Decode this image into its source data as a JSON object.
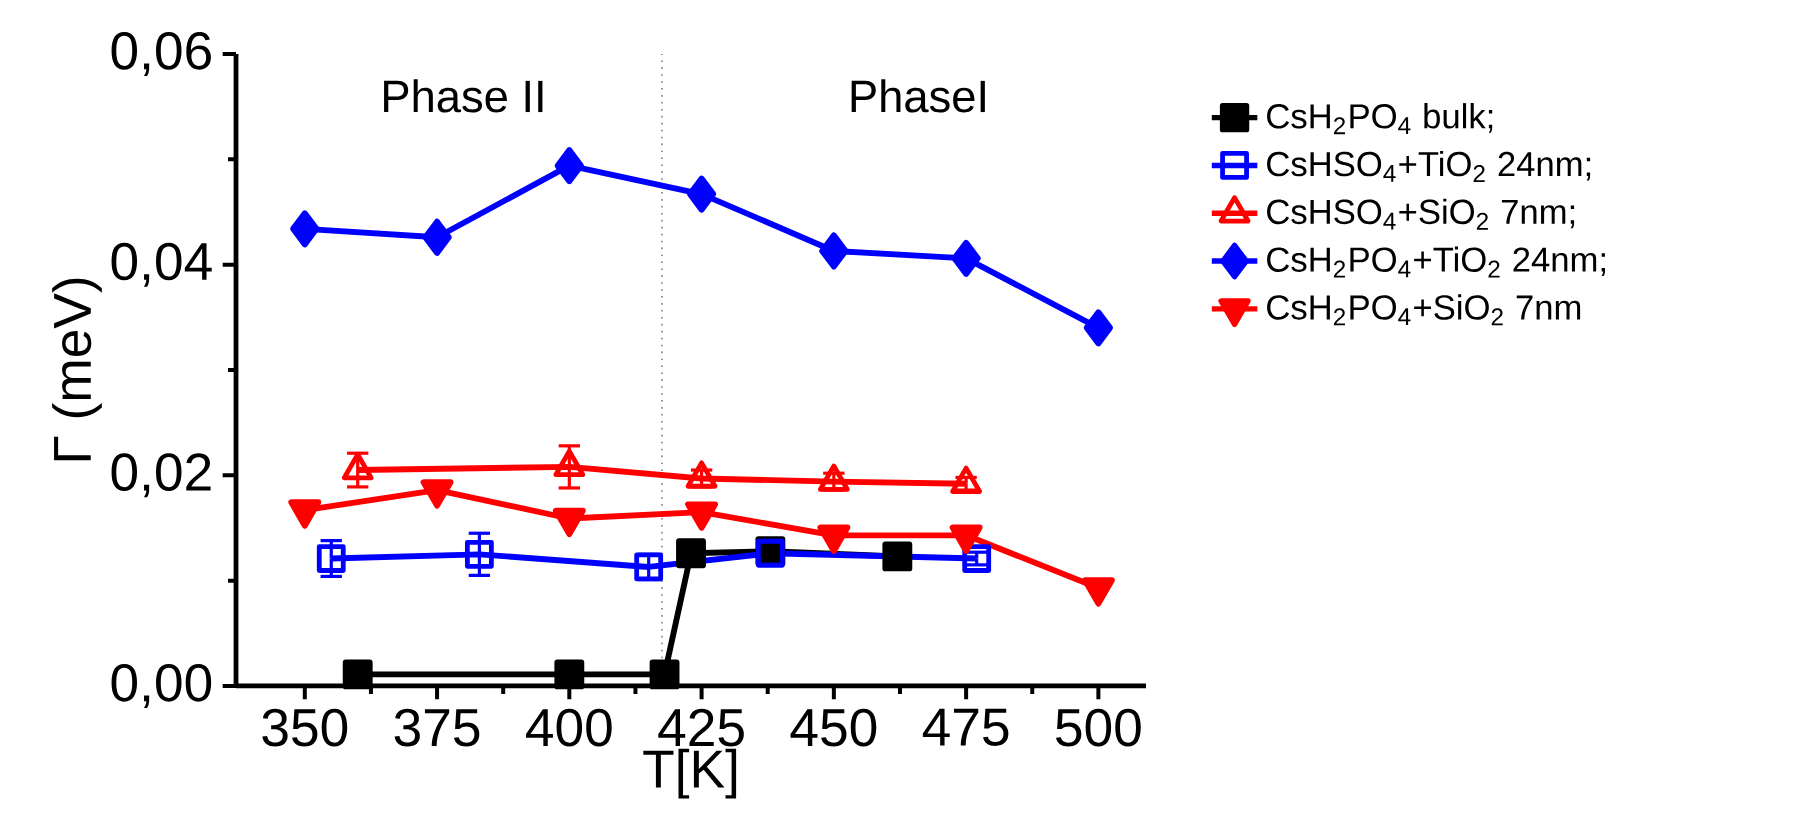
{
  "chart_data": {
    "type": "line",
    "xlabel": "T[K]",
    "ylabel": "Γ (meV)",
    "xlim": [
      337,
      509
    ],
    "ylim": [
      0,
      0.06
    ],
    "xticks": [
      350,
      375,
      400,
      425,
      450,
      475,
      500
    ],
    "yticks": [
      {
        "value": 0,
        "label": "0,00"
      },
      {
        "value": 0.02,
        "label": "0,02"
      },
      {
        "value": 0.04,
        "label": "0,04"
      },
      {
        "value": 0.06,
        "label": "0,06"
      }
    ],
    "legend": "right",
    "grid": false,
    "ref_lines": [
      {
        "axis": "x",
        "value": 417.5,
        "color": "#808080",
        "line_style": "dotted"
      }
    ],
    "annotations": [
      "Phase II",
      "PhaseI"
    ],
    "series": [
      {
        "name": "CsH$_{2}$PO$_{4}$ bulk;",
        "color": "#000000",
        "marker": "square",
        "x": [
          360,
          400,
          418,
          423,
          438,
          462
        ],
        "values": [
          0.0011,
          0.0011,
          0.0011,
          0.0126,
          0.0128,
          0.0123
        ]
      },
      {
        "name": "CsHSO$_{4}$+TiO$_{2}$ 24nm;",
        "color": "#0000ff",
        "marker": "square_open",
        "x": [
          355,
          383,
          415,
          438,
          477
        ],
        "values": [
          0.0121,
          0.0125,
          0.0113,
          0.0126,
          0.0121
        ],
        "errors": [
          0.0017,
          0.002,
          0.0012,
          0.001,
          0.0006
        ]
      },
      {
        "name": "CsHSO$_{4}$+SiO$_{2}$ 7nm;",
        "color": "#ff0000",
        "marker": "triangle_open",
        "x": [
          360,
          400,
          425,
          450,
          475
        ],
        "values": [
          0.0205,
          0.0208,
          0.0197,
          0.0194,
          0.0192
        ],
        "errors": [
          0.0016,
          0.002,
          0.0008,
          0.0008,
          0.0006
        ]
      },
      {
        "name": "CsH$_{2}$PO$_{4}$+TiO$_{2}$ 24nm;",
        "color": "#0000ff",
        "marker": "diamond",
        "x": [
          350,
          375,
          400,
          425,
          450,
          475,
          500
        ],
        "values": [
          0.0434,
          0.0426,
          0.0494,
          0.0467,
          0.0413,
          0.0406,
          0.034
        ]
      },
      {
        "name": "CsH$_{2}$PO$_{4}$+SiO$_{2}$ 7nm",
        "color": "#ff0000",
        "marker": "triangle_down",
        "x": [
          350,
          375,
          400,
          425,
          450,
          475,
          500
        ],
        "values": [
          0.0167,
          0.0186,
          0.0159,
          0.0165,
          0.0143,
          0.0143,
          0.0093
        ]
      }
    ]
  }
}
